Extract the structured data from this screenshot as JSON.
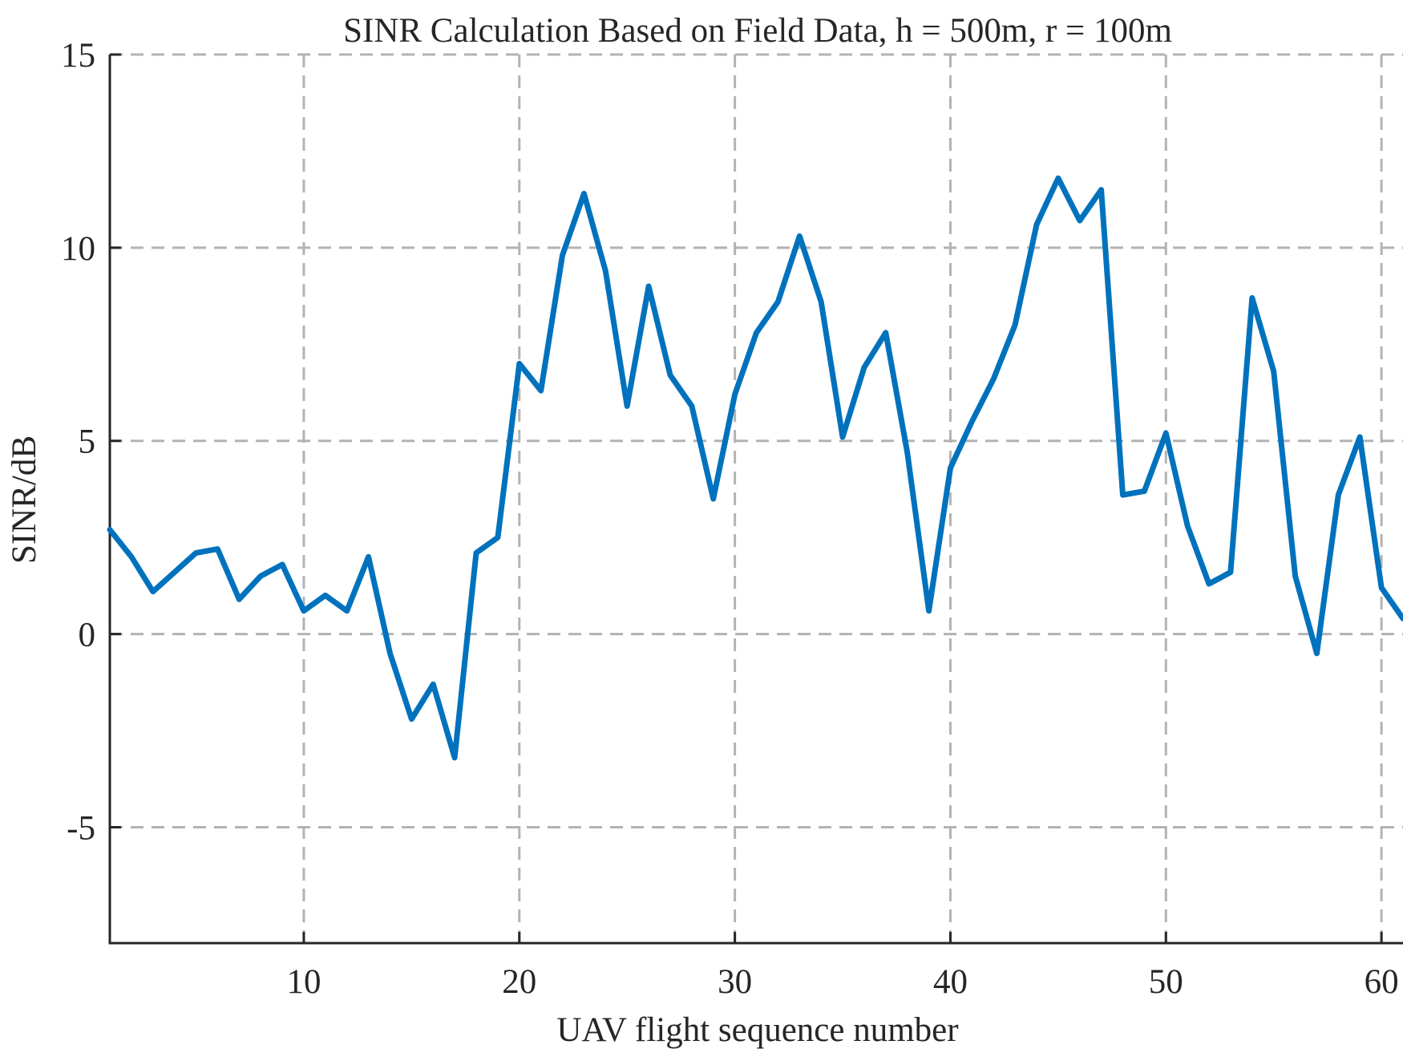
{
  "chart_data": {
    "type": "line",
    "title": "SINR Calculation Based on Field Data, h = 500m, r = 100m",
    "xlabel": "UAV flight sequence number",
    "ylabel": "SINR/dB",
    "xlim": [
      1,
      61
    ],
    "ylim": [
      -8,
      15
    ],
    "x_ticks": [
      10,
      20,
      30,
      40,
      50,
      60
    ],
    "y_ticks": [
      15,
      10,
      5,
      0,
      -5
    ],
    "x_tick_labels": [
      "10",
      "20",
      "30",
      "40",
      "50",
      "60"
    ],
    "y_tick_labels": [
      "15",
      "10",
      "5",
      "0",
      "-5"
    ],
    "grid": true,
    "series": [
      {
        "color": "#0072BD",
        "x": [
          1,
          2,
          3,
          4,
          5,
          6,
          7,
          8,
          9,
          10,
          11,
          12,
          13,
          14,
          15,
          16,
          17,
          18,
          19,
          20,
          21,
          22,
          23,
          24,
          25,
          26,
          27,
          28,
          29,
          30,
          31,
          32,
          33,
          34,
          35,
          36,
          37,
          38,
          39,
          40,
          41,
          42,
          43,
          44,
          45,
          46,
          47,
          48,
          49,
          50,
          51,
          52,
          53,
          54,
          55,
          56,
          57,
          58,
          59,
          60,
          61
        ],
        "values": [
          2.7,
          2.0,
          1.1,
          1.6,
          2.1,
          2.2,
          0.9,
          1.5,
          1.8,
          0.6,
          1.0,
          0.6,
          2.0,
          -0.5,
          -2.2,
          -1.3,
          -3.2,
          2.1,
          2.5,
          7.0,
          6.3,
          9.8,
          11.4,
          9.4,
          5.9,
          9.0,
          6.7,
          5.9,
          3.5,
          6.2,
          7.8,
          8.6,
          10.3,
          8.6,
          5.1,
          6.9,
          7.8,
          4.7,
          0.6,
          4.3,
          5.5,
          6.6,
          8.0,
          10.6,
          11.8,
          10.7,
          11.5,
          3.6,
          3.7,
          5.2,
          2.8,
          1.3,
          1.6,
          8.7,
          6.8,
          1.5,
          -0.5,
          3.6,
          5.1,
          1.2,
          0.4
        ]
      }
    ]
  }
}
